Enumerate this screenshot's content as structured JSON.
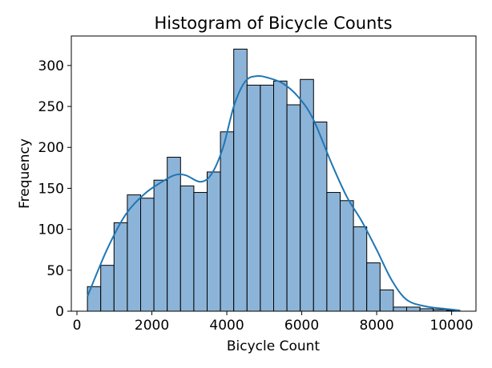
{
  "chart_data": {
    "type": "bar",
    "title": "Histogram of Bicycle Counts",
    "xlabel": "Bicycle Count",
    "ylabel": "Frequency",
    "xlim": [
      -150,
      10650
    ],
    "ylim": [
      0,
      336
    ],
    "xticks": [
      0,
      2000,
      4000,
      6000,
      8000,
      10000
    ],
    "yticks": [
      0,
      50,
      100,
      150,
      200,
      250,
      300
    ],
    "bin_edges": [
      280,
      635,
      990,
      1345,
      1700,
      2055,
      2410,
      2765,
      3120,
      3475,
      3830,
      4185,
      4540,
      4895,
      5250,
      5605,
      5960,
      6315,
      6670,
      7025,
      7380,
      7735,
      8090,
      8445,
      8800,
      9155,
      9510,
      9865,
      10220
    ],
    "counts": [
      30,
      56,
      108,
      142,
      138,
      160,
      188,
      153,
      145,
      170,
      219,
      320,
      276,
      276,
      281,
      252,
      283,
      231,
      145,
      135,
      103,
      59,
      26,
      5,
      5,
      3,
      2,
      1
    ],
    "kde": {
      "x": [
        280,
        800,
        1300,
        1800,
        2200,
        2600,
        2900,
        3300,
        3600,
        3900,
        4200,
        4500,
        4800,
        5100,
        5500,
        5900,
        6300,
        6800,
        7200,
        7600,
        8000,
        8400,
        8800,
        9300,
        9800,
        10220
      ],
      "y": [
        18,
        75,
        118,
        143,
        156,
        166,
        166,
        158,
        168,
        200,
        252,
        281,
        287,
        285,
        278,
        262,
        235,
        180,
        140,
        110,
        75,
        38,
        14,
        6,
        3,
        1
      ]
    },
    "bar_color": "#8cb4d8",
    "bar_edge_color": "#000000",
    "kde_color": "#1f77b4",
    "grid": false,
    "legend": "none"
  }
}
